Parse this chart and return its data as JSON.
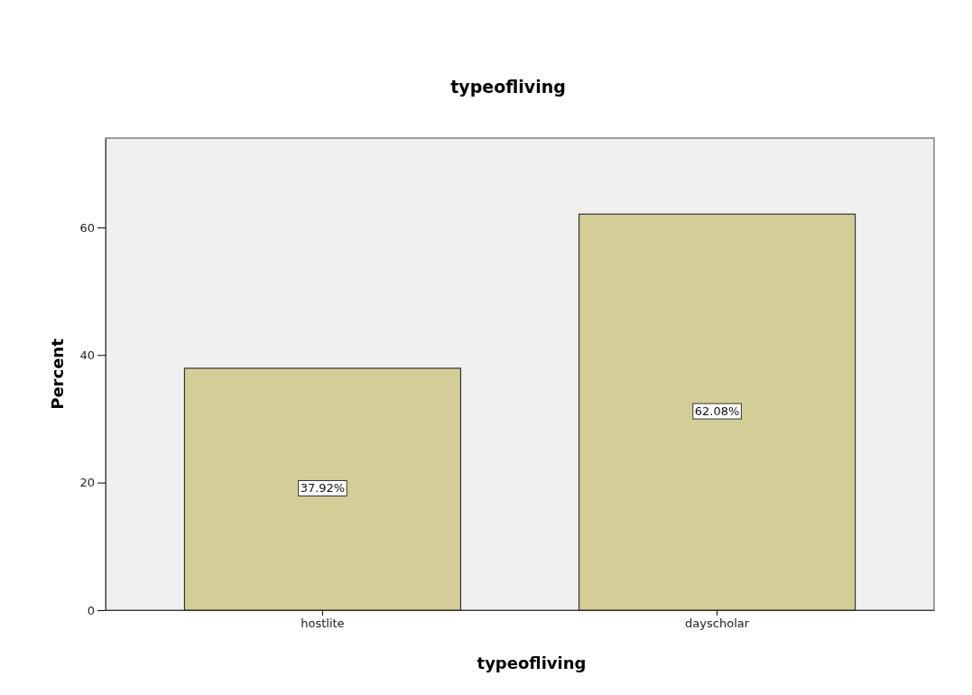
{
  "chart_data": {
    "type": "bar",
    "title": "typeofliving",
    "xlabel": "typeofliving",
    "ylabel": "Percent",
    "categories": [
      "hostlite",
      "dayscholar"
    ],
    "values": [
      37.92,
      62.08
    ],
    "value_labels": [
      "37.92%",
      "62.08%"
    ],
    "color": "#d3ce97",
    "ylim": [
      0,
      74
    ],
    "yticks": [
      0,
      20,
      40,
      60
    ],
    "grid": false
  }
}
